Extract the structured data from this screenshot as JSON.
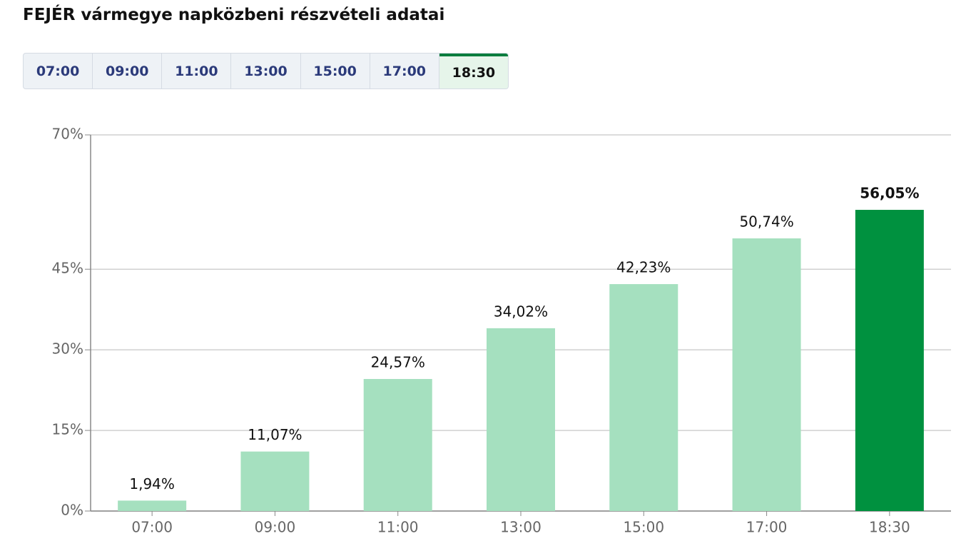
{
  "title": "FEJÉR vármegye napközbeni részvételi adatai",
  "tabs": [
    "07:00",
    "09:00",
    "11:00",
    "13:00",
    "15:00",
    "17:00",
    "18:30"
  ],
  "active_tab": 6,
  "chart_data": {
    "type": "bar",
    "categories": [
      "07:00",
      "09:00",
      "11:00",
      "13:00",
      "15:00",
      "17:00",
      "18:30"
    ],
    "values": [
      1.94,
      11.07,
      24.57,
      34.02,
      42.23,
      50.74,
      56.05
    ],
    "value_labels": [
      "1,94%",
      "11,07%",
      "24,57%",
      "34,02%",
      "42,23%",
      "50,74%",
      "56,05%"
    ],
    "colors": [
      "#a5e0bf",
      "#a5e0bf",
      "#a5e0bf",
      "#a5e0bf",
      "#a5e0bf",
      "#a5e0bf",
      "#00913f"
    ],
    "ylim": [
      0,
      70
    ],
    "yticks": [
      {
        "value": 0,
        "label": "0%"
      },
      {
        "value": 15,
        "label": "15%"
      },
      {
        "value": 30,
        "label": "30%"
      },
      {
        "value": 45,
        "label": "45%"
      },
      {
        "value": 70,
        "label": "70%"
      }
    ],
    "grid": true
  }
}
